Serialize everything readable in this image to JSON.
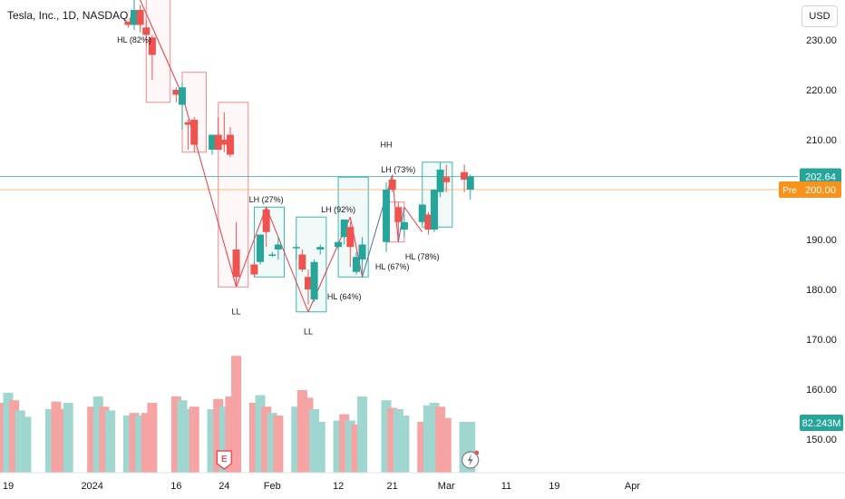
{
  "header": {
    "symbol": "Tesla, Inc., 1D, NASDAQ",
    "currency": "USD"
  },
  "price_badges": {
    "last": "202.64",
    "pre_label": "Pre",
    "pre_value": "200.00",
    "volume": "82.243M"
  },
  "colors": {
    "up": "#26a69a",
    "down": "#ef5350",
    "vol_up": "#9fd6cf",
    "vol_down": "#f5a3a3",
    "last_line": "#26a69a",
    "pre_line": "#f7a350",
    "pre_badge": "#f7931a",
    "event_badge": "#e0555a",
    "box_up": "#3eb6ad",
    "box_down": "#f28b8b",
    "zigzag": "#f23645",
    "zigzag_up": "#4a6fa5"
  },
  "icons": {
    "earnings": "earnings-E-badge",
    "dividend": "lightning-icon"
  },
  "chart_data": {
    "type": "candlestick",
    "title": "Tesla, Inc., 1D, NASDAQ",
    "currency": "USD",
    "ylim": [
      143,
      235
    ],
    "yticks": [
      230,
      220,
      210,
      200,
      190,
      180,
      170,
      160,
      150
    ],
    "ytick_labels": [
      "230.00",
      "220.00",
      "210.00",
      "200.00",
      "190.00",
      "180.00",
      "170.00",
      "160.00",
      "150.00"
    ],
    "xtick_labels": [
      {
        "label": "19",
        "date": "2023-12-19"
      },
      {
        "label": "2024",
        "date": "2024-01-02"
      },
      {
        "label": "16",
        "date": "2024-01-16"
      },
      {
        "label": "24",
        "date": "2024-01-24"
      },
      {
        "label": "Feb",
        "date": "2024-02-01"
      },
      {
        "label": "12",
        "date": "2024-02-12"
      },
      {
        "label": "21",
        "date": "2024-02-21"
      },
      {
        "label": "Mar",
        "date": "2024-03-01"
      },
      {
        "label": "11",
        "date": "2024-03-11"
      },
      {
        "label": "19",
        "date": "2024-03-19"
      },
      {
        "label": "Apr",
        "date": "2024-04-01"
      }
    ],
    "candles": [
      {
        "date": "2024-01-08",
        "open": 234.5,
        "high": 236.0,
        "low": 232.5,
        "close": 233.0
      },
      {
        "date": "2024-01-09",
        "open": 233.0,
        "high": 238.0,
        "low": 232.0,
        "close": 236.0
      },
      {
        "date": "2024-01-10",
        "open": 236.0,
        "high": 237.0,
        "low": 231.5,
        "close": 233.0
      },
      {
        "date": "2024-01-11",
        "open": 232.5,
        "high": 234.0,
        "low": 229.0,
        "close": 231.0
      },
      {
        "date": "2024-01-12",
        "open": 230.5,
        "high": 231.0,
        "low": 222.0,
        "close": 227.0
      },
      {
        "date": "2024-01-16",
        "open": 220.0,
        "high": 220.5,
        "low": 217.5,
        "close": 219.0
      },
      {
        "date": "2024-01-17",
        "open": 217.0,
        "high": 221.5,
        "low": 212.0,
        "close": 220.5
      },
      {
        "date": "2024-01-18",
        "open": 213.5,
        "high": 214.0,
        "low": 208.0,
        "close": 213.0
      },
      {
        "date": "2024-01-19",
        "open": 214.0,
        "high": 214.5,
        "low": 207.5,
        "close": 209.0
      },
      {
        "date": "2024-01-22",
        "open": 208.0,
        "high": 211.0,
        "low": 207.0,
        "close": 211.0
      },
      {
        "date": "2024-01-23",
        "open": 211.0,
        "high": 214.5,
        "low": 208.0,
        "close": 208.0
      },
      {
        "date": "2024-01-24",
        "open": 210.0,
        "high": 215.5,
        "low": 207.5,
        "close": 209.0
      },
      {
        "date": "2024-01-25",
        "open": 211.0,
        "high": 212.5,
        "low": 206.5,
        "close": 207.0
      },
      {
        "date": "2024-01-26",
        "open": 188.0,
        "high": 193.5,
        "low": 180.5,
        "close": 182.5
      },
      {
        "date": "2024-01-29",
        "open": 185.0,
        "high": 185.5,
        "low": 182.5,
        "close": 183.0
      },
      {
        "date": "2024-01-30",
        "open": 185.5,
        "high": 191.0,
        "low": 185.0,
        "close": 191.0
      },
      {
        "date": "2024-01-31",
        "open": 196.0,
        "high": 196.5,
        "low": 188.5,
        "close": 191.5
      },
      {
        "date": "2024-02-01",
        "open": 187.0,
        "high": 187.5,
        "low": 186.5,
        "close": 187.0
      },
      {
        "date": "2024-02-02",
        "open": 188.0,
        "high": 190.5,
        "low": 186.0,
        "close": 189.0
      },
      {
        "date": "2024-02-05",
        "open": 188.5,
        "high": 189.0,
        "low": 186.0,
        "close": 188.5
      },
      {
        "date": "2024-02-06",
        "open": 187.0,
        "high": 188.0,
        "low": 183.5,
        "close": 184.0
      },
      {
        "date": "2024-02-07",
        "open": 182.5,
        "high": 184.0,
        "low": 177.0,
        "close": 180.0
      },
      {
        "date": "2024-02-08",
        "open": 178.0,
        "high": 186.0,
        "low": 177.5,
        "close": 185.5
      },
      {
        "date": "2024-02-09",
        "open": 188.0,
        "high": 189.0,
        "low": 187.0,
        "close": 188.5
      },
      {
        "date": "2024-02-12",
        "open": 188.5,
        "high": 189.5,
        "low": 188.0,
        "close": 189.5
      },
      {
        "date": "2024-02-13",
        "open": 190.5,
        "high": 194.0,
        "low": 189.0,
        "close": 194.0
      },
      {
        "date": "2024-02-14",
        "open": 192.5,
        "high": 193.5,
        "low": 184.5,
        "close": 188.5
      },
      {
        "date": "2024-02-15",
        "open": 183.5,
        "high": 187.5,
        "low": 183.0,
        "close": 186.5
      },
      {
        "date": "2024-02-16",
        "open": 186.0,
        "high": 190.5,
        "low": 183.0,
        "close": 189.0
      },
      {
        "date": "2024-02-20",
        "open": 189.5,
        "high": 201.5,
        "low": 187.5,
        "close": 200.0
      },
      {
        "date": "2024-02-21",
        "open": 202.0,
        "high": 203.0,
        "low": 199.5,
        "close": 200.0
      },
      {
        "date": "2024-02-22",
        "open": 196.5,
        "high": 197.5,
        "low": 190.5,
        "close": 193.5
      },
      {
        "date": "2024-02-23",
        "open": 192.0,
        "high": 195.0,
        "low": 190.5,
        "close": 193.5
      },
      {
        "date": "2024-02-26",
        "open": 193.5,
        "high": 197.0,
        "low": 193.0,
        "close": 197.0
      },
      {
        "date": "2024-02-27",
        "open": 195.0,
        "high": 195.5,
        "low": 191.0,
        "close": 192.0
      },
      {
        "date": "2024-02-28",
        "open": 192.0,
        "high": 200.0,
        "low": 191.5,
        "close": 200.0
      },
      {
        "date": "2024-02-29",
        "open": 199.5,
        "high": 205.5,
        "low": 198.5,
        "close": 204.0
      },
      {
        "date": "2024-03-01",
        "open": 202.5,
        "high": 205.0,
        "low": 199.5,
        "close": 201.5
      },
      {
        "date": "2024-03-04",
        "open": 203.5,
        "high": 205.0,
        "low": 199.5,
        "close": 202.0
      },
      {
        "date": "2024-03-05",
        "open": 200.0,
        "high": 203.0,
        "low": 198.0,
        "close": 202.64
      }
    ],
    "volume": [
      {
        "date": "2023-12-18",
        "dir": "down",
        "level": 0.55
      },
      {
        "date": "2023-12-19",
        "dir": "up",
        "level": 0.63
      },
      {
        "date": "2023-12-20",
        "dir": "down",
        "level": 0.57
      },
      {
        "date": "2023-12-21",
        "dir": "up",
        "level": 0.49
      },
      {
        "date": "2023-12-22",
        "dir": "up",
        "level": 0.44
      },
      {
        "date": "2023-12-26",
        "dir": "up",
        "level": 0.5
      },
      {
        "date": "2023-12-27",
        "dir": "down",
        "level": 0.56
      },
      {
        "date": "2023-12-28",
        "dir": "down",
        "level": 0.5
      },
      {
        "date": "2023-12-29",
        "dir": "up",
        "level": 0.55
      },
      {
        "date": "2024-01-02",
        "dir": "down",
        "level": 0.52
      },
      {
        "date": "2024-01-03",
        "dir": "up",
        "level": 0.6
      },
      {
        "date": "2024-01-04",
        "dir": "down",
        "level": 0.52
      },
      {
        "date": "2024-01-05",
        "dir": "up",
        "level": 0.49
      },
      {
        "date": "2024-01-08",
        "dir": "up",
        "level": 0.45
      },
      {
        "date": "2024-01-09",
        "dir": "down",
        "level": 0.47
      },
      {
        "date": "2024-01-10",
        "dir": "up",
        "level": 0.45
      },
      {
        "date": "2024-01-11",
        "dir": "down",
        "level": 0.47
      },
      {
        "date": "2024-01-12",
        "dir": "down",
        "level": 0.55
      },
      {
        "date": "2024-01-16",
        "dir": "down",
        "level": 0.6
      },
      {
        "date": "2024-01-17",
        "dir": "up",
        "level": 0.57
      },
      {
        "date": "2024-01-18",
        "dir": "up",
        "level": 0.5
      },
      {
        "date": "2024-01-19",
        "dir": "down",
        "level": 0.52
      },
      {
        "date": "2024-01-22",
        "dir": "up",
        "level": 0.5
      },
      {
        "date": "2024-01-23",
        "dir": "down",
        "level": 0.58
      },
      {
        "date": "2024-01-24",
        "dir": "up",
        "level": 0.52
      },
      {
        "date": "2024-01-25",
        "dir": "down",
        "level": 0.6
      },
      {
        "date": "2024-01-26",
        "dir": "down",
        "level": 0.92
      },
      {
        "date": "2024-01-29",
        "dir": "down",
        "level": 0.55
      },
      {
        "date": "2024-01-30",
        "dir": "up",
        "level": 0.61
      },
      {
        "date": "2024-01-31",
        "dir": "down",
        "level": 0.52
      },
      {
        "date": "2024-02-01",
        "dir": "up",
        "level": 0.47
      },
      {
        "date": "2024-02-02",
        "dir": "down",
        "level": 0.45
      },
      {
        "date": "2024-02-05",
        "dir": "up",
        "level": 0.52
      },
      {
        "date": "2024-02-06",
        "dir": "down",
        "level": 0.65
      },
      {
        "date": "2024-02-07",
        "dir": "down",
        "level": 0.59
      },
      {
        "date": "2024-02-08",
        "dir": "up",
        "level": 0.5
      },
      {
        "date": "2024-02-09",
        "dir": "up",
        "level": 0.4
      },
      {
        "date": "2024-02-12",
        "dir": "up",
        "level": 0.41
      },
      {
        "date": "2024-02-13",
        "dir": "down",
        "level": 0.46
      },
      {
        "date": "2024-02-14",
        "dir": "up",
        "level": 0.41
      },
      {
        "date": "2024-02-15",
        "dir": "down",
        "level": 0.38
      },
      {
        "date": "2024-02-16",
        "dir": "up",
        "level": 0.6
      },
      {
        "date": "2024-02-20",
        "dir": "up",
        "level": 0.57
      },
      {
        "date": "2024-02-21",
        "dir": "down",
        "level": 0.51
      },
      {
        "date": "2024-02-22",
        "dir": "up",
        "level": 0.5
      },
      {
        "date": "2024-02-23",
        "dir": "up",
        "level": 0.45
      },
      {
        "date": "2024-02-26",
        "dir": "down",
        "level": 0.4
      },
      {
        "date": "2024-02-27",
        "dir": "up",
        "level": 0.53
      },
      {
        "date": "2024-02-28",
        "dir": "up",
        "level": 0.55
      },
      {
        "date": "2024-02-29",
        "dir": "down",
        "level": 0.52
      },
      {
        "date": "2024-03-01",
        "dir": "down",
        "level": 0.43
      },
      {
        "date": "2024-03-04",
        "dir": "up",
        "level": 0.4
      },
      {
        "date": "2024-03-05",
        "dir": "up",
        "level": 0.4
      }
    ],
    "zigzag": [
      {
        "date": "2024-01-10",
        "price": 238.0
      },
      {
        "date": "2024-01-17",
        "price": 219.0
      },
      {
        "date": "2024-01-26",
        "price": 180.5
      },
      {
        "date": "2024-01-31",
        "price": 196.5
      },
      {
        "date": "2024-02-07",
        "price": 175.5
      },
      {
        "date": "2024-02-14",
        "price": 194.5
      },
      {
        "date": "2024-02-16",
        "price": 182.5
      },
      {
        "date": "2024-02-21",
        "price": 203.0
      },
      {
        "date": "2024-02-22",
        "price": 189.5
      },
      {
        "date": "2024-02-23",
        "price": 196.5
      },
      {
        "date": "2024-02-26",
        "price": 191.5
      }
    ],
    "zones": [
      {
        "x0": "2024-01-11",
        "x1": "2024-01-15",
        "top": 240,
        "bottom": 217.5,
        "dir": "down"
      },
      {
        "x0": "2024-01-17",
        "x1": "2024-01-21",
        "top": 223.5,
        "bottom": 207.5,
        "dir": "down"
      },
      {
        "x0": "2024-01-23",
        "x1": "2024-01-28",
        "top": 217.5,
        "bottom": 180.5,
        "dir": "down"
      },
      {
        "x0": "2024-01-29",
        "x1": "2024-02-03",
        "top": 196.5,
        "bottom": 182.5,
        "dir": "up"
      },
      {
        "x0": "2024-02-05",
        "x1": "2024-02-10",
        "top": 194.5,
        "bottom": 175.5,
        "dir": "up"
      },
      {
        "x0": "2024-02-12",
        "x1": "2024-02-17",
        "top": 202.5,
        "bottom": 182.5,
        "dir": "up"
      },
      {
        "x0": "2024-02-20",
        "x1": "2024-02-23",
        "top": 197.5,
        "bottom": 189.5,
        "dir": "down"
      },
      {
        "x0": "2024-02-26",
        "x1": "2024-03-02",
        "top": 205.5,
        "bottom": 192.5,
        "dir": "up"
      }
    ],
    "annotations": [
      {
        "text": "HL (82%)",
        "date": "2024-01-09",
        "price": 229.5
      },
      {
        "text": "LL",
        "date": "2024-01-26",
        "price": 175.0
      },
      {
        "text": "LH (27%)",
        "date": "2024-01-31",
        "price": 197.5
      },
      {
        "text": "LL",
        "date": "2024-02-07",
        "price": 171.0
      },
      {
        "text": "LH (92%)",
        "date": "2024-02-12",
        "price": 195.5
      },
      {
        "text": "HL (64%)",
        "date": "2024-02-13",
        "price": 178.0
      },
      {
        "text": "HH",
        "date": "2024-02-20",
        "price": 208.5
      },
      {
        "text": "LH (73%)",
        "date": "2024-02-22",
        "price": 203.5
      },
      {
        "text": "HL (67%)",
        "date": "2024-02-21",
        "price": 184.0
      },
      {
        "text": "HL (78%)",
        "date": "2024-02-26",
        "price": 186.0
      }
    ],
    "events": [
      {
        "type": "earnings",
        "label": "E",
        "date": "2024-01-24"
      },
      {
        "type": "dividend",
        "date": "2024-03-05"
      }
    ],
    "last_price": 202.64,
    "premarket_price": 200.0,
    "volume_label": "82.243M",
    "grid": false
  }
}
